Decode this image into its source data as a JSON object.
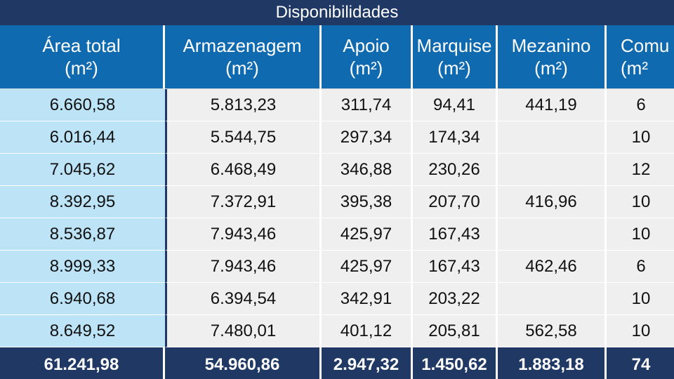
{
  "title": "Disponibilidades",
  "header": [
    {
      "label": "Área total",
      "unit": "(m²)"
    },
    {
      "label": "Armazenagem",
      "unit": "(m²)"
    },
    {
      "label": "Apoio",
      "unit": "(m²)"
    },
    {
      "label": "Marquise",
      "unit": "(m²)"
    },
    {
      "label": "Mezanino",
      "unit": "(m²)"
    },
    {
      "label": "Comu",
      "unit": "(m²"
    }
  ],
  "rows": [
    [
      "6.660,58",
      "5.813,23",
      "311,74",
      "94,41",
      "441,19",
      "6"
    ],
    [
      "6.016,44",
      "5.544,75",
      "297,34",
      "174,34",
      "",
      "10"
    ],
    [
      "7.045,62",
      "6.468,49",
      "346,88",
      "230,26",
      "",
      "12"
    ],
    [
      "8.392,95",
      "7.372,91",
      "395,38",
      "207,70",
      "416,96",
      "10"
    ],
    [
      "8.536,87",
      "7.943,46",
      "425,97",
      "167,43",
      "",
      "10"
    ],
    [
      "8.999,33",
      "7.943,46",
      "425,97",
      "167,43",
      "462,46",
      "6"
    ],
    [
      "6.940,68",
      "6.394,54",
      "342,91",
      "203,22",
      "",
      "10"
    ],
    [
      "8.649,52",
      "7.480,01",
      "401,12",
      "205,81",
      "562,58",
      "10"
    ]
  ],
  "totals": [
    "61.241,98",
    "54.960,86",
    "2.947,32",
    "1.450,62",
    "1.883,18",
    "74"
  ]
}
